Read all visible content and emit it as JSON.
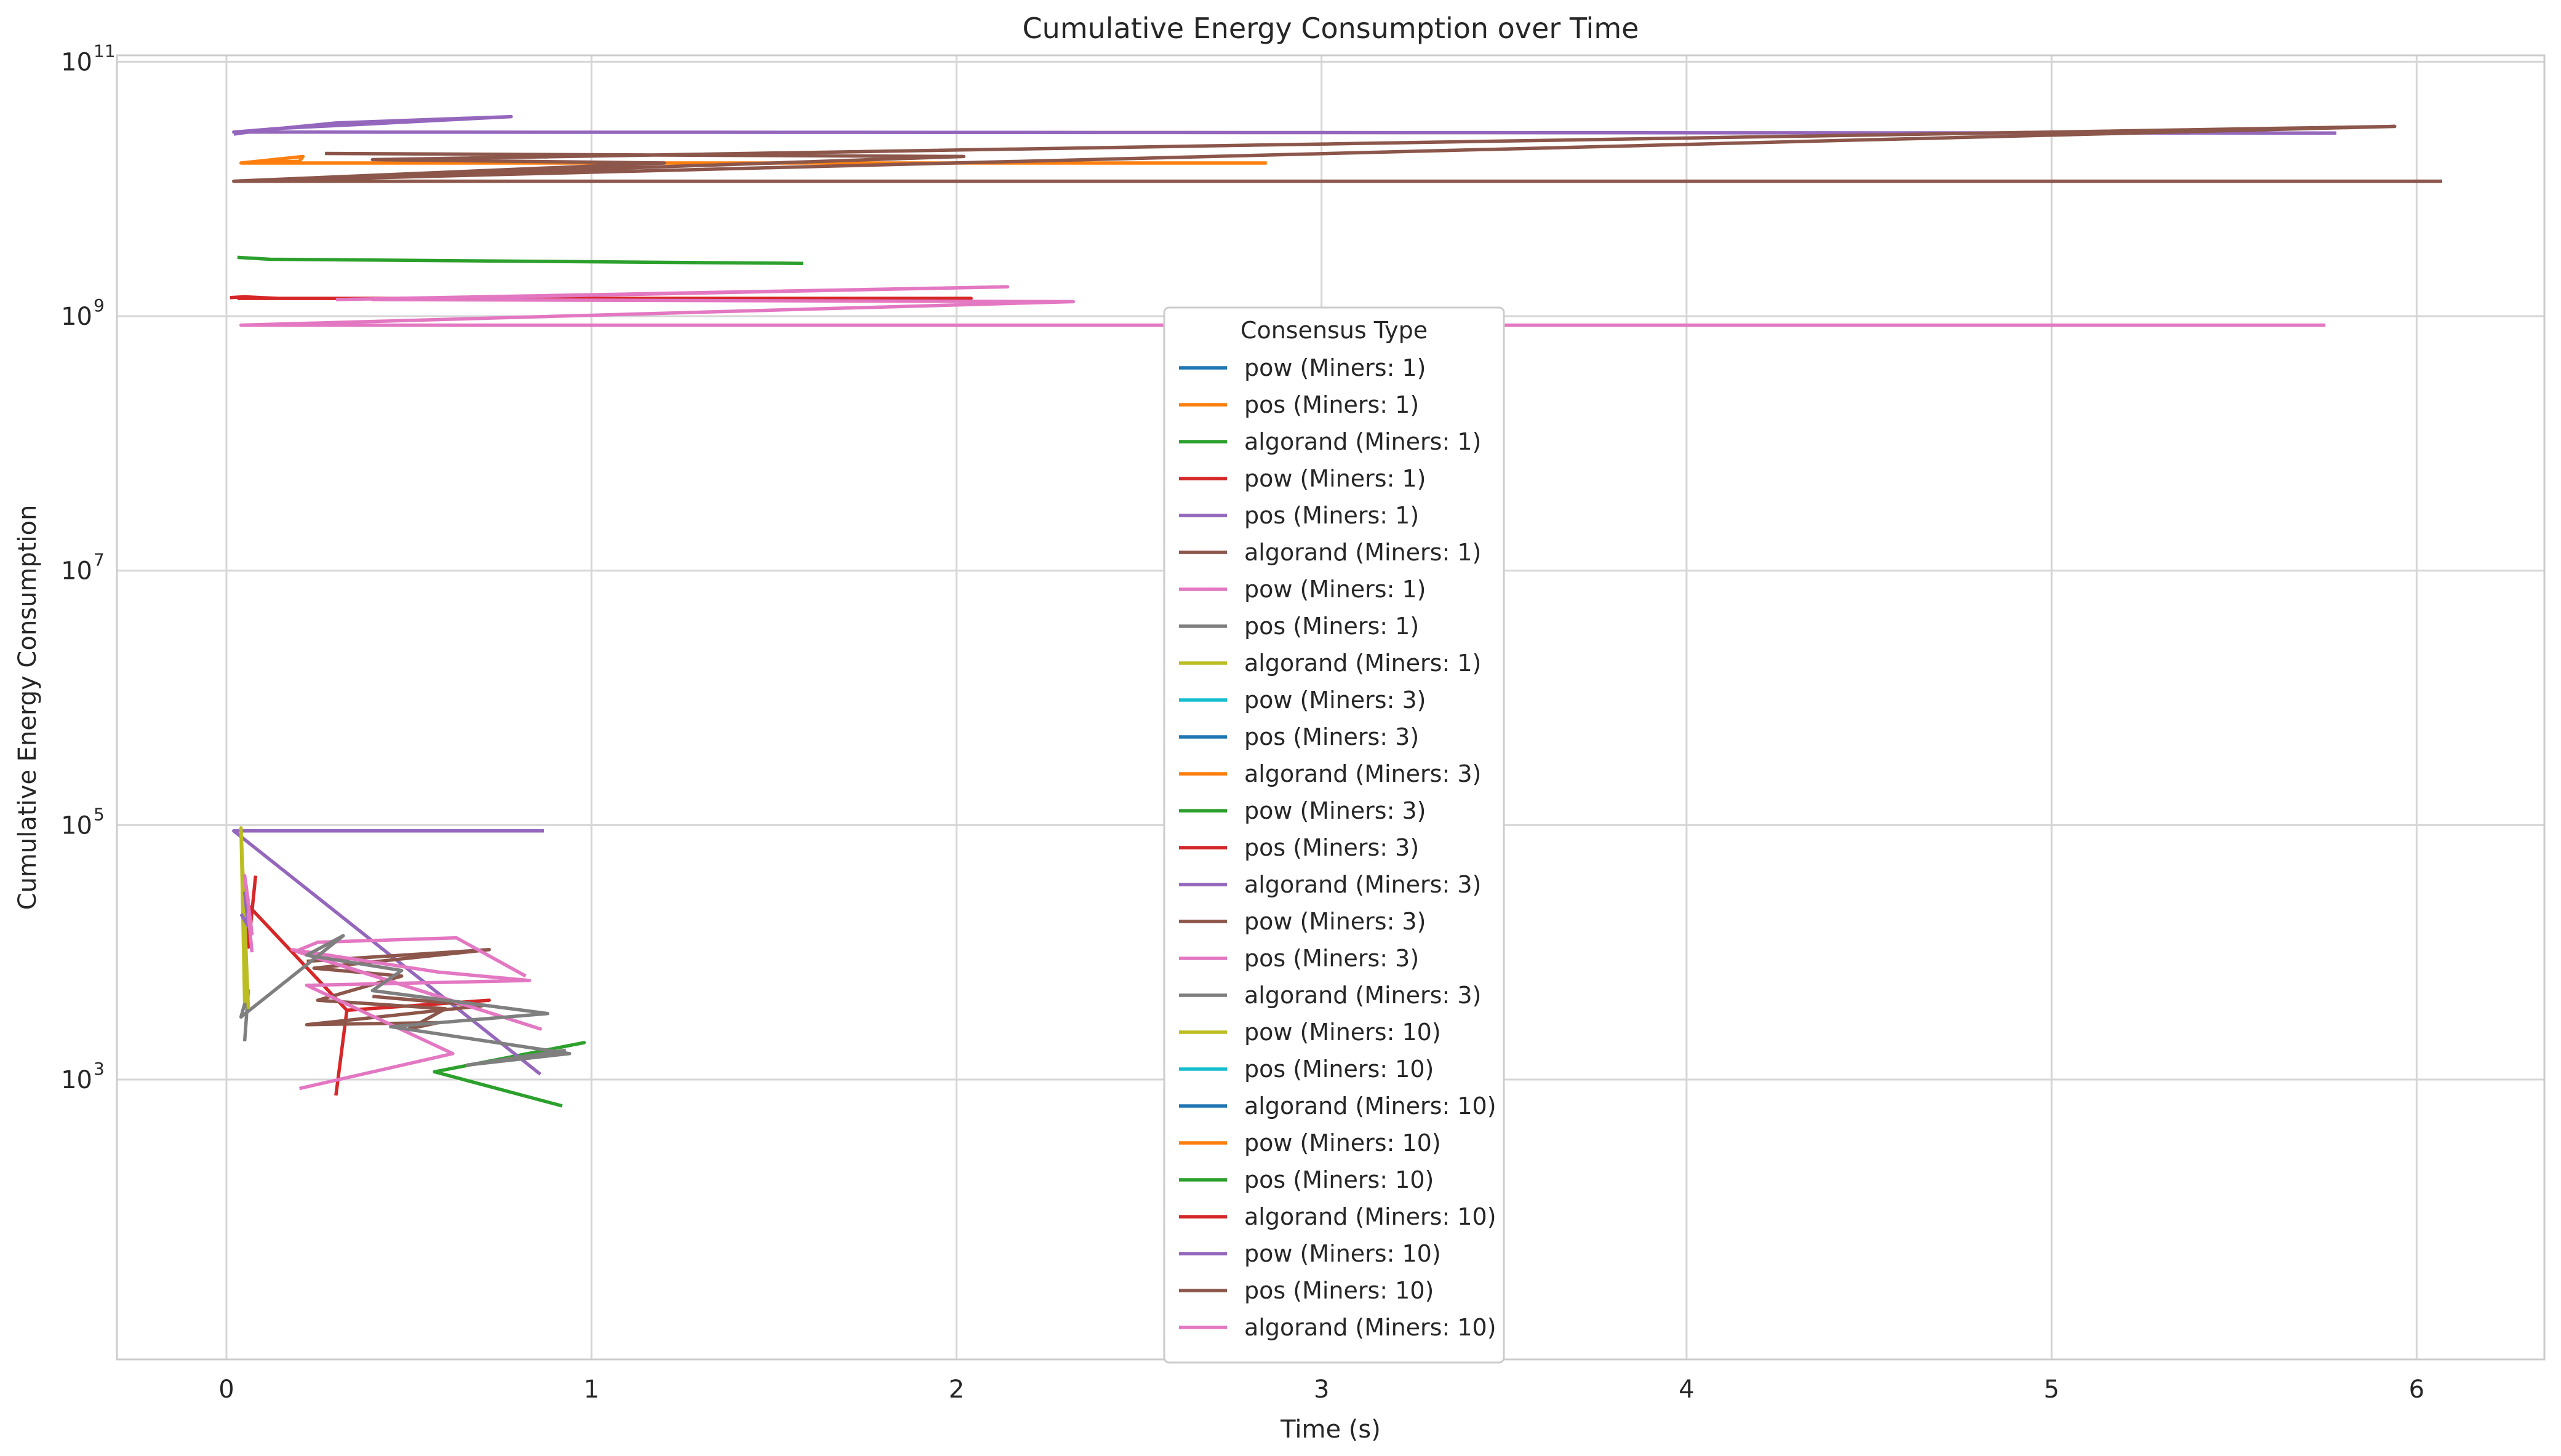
{
  "chart_data": {
    "type": "line",
    "title": "Cumulative Energy Consumption over Time",
    "xlabel": "Time (s)",
    "ylabel": "Cumulative Energy Consumption",
    "xscale": "linear",
    "yscale": "log",
    "xlim": [
      -0.3,
      6.35
    ],
    "ylim_log10": [
      0.8,
      11.05
    ],
    "xticks": [
      0,
      1,
      2,
      3,
      4,
      5,
      6
    ],
    "xtick_labels": [
      "0",
      "1",
      "2",
      "3",
      "4",
      "5",
      "6"
    ],
    "yticks": [
      3,
      5,
      7,
      9,
      11
    ],
    "ytick_base": "10",
    "ytick_exponents": [
      "3",
      "5",
      "7",
      "9",
      "11"
    ],
    "grid": true,
    "legend": {
      "title": "Consensus Type",
      "placement": "center"
    },
    "series": [
      {
        "name": "pow (Miners: 1)",
        "color": "#1f77b4",
        "x": [],
        "y": []
      },
      {
        "name": "pos (Miners: 1)",
        "color": "#ff7f0e",
        "x": [
          0.04,
          0.2,
          0.21,
          0.04,
          2.85
        ],
        "y": [
          16000000000.0,
          16500000000.0,
          18000000000.0,
          16000000000.0,
          16000000000.0
        ]
      },
      {
        "name": "algorand (Miners: 1)",
        "color": "#2ca02c",
        "x": [
          0.03,
          0.12,
          1.58
        ],
        "y": [
          2900000000.0,
          2800000000.0,
          2600000000.0
        ]
      },
      {
        "name": "pow (Miners: 1)",
        "color": "#d62728",
        "x": [
          0.01,
          0.05,
          0.14,
          2.04,
          0.03
        ],
        "y": [
          1400000000.0,
          1420000000.0,
          1380000000.0,
          1380000000.0,
          1380000000.0
        ]
      },
      {
        "name": "pos (Miners: 1)",
        "color": "#9467bd",
        "x": [
          0.02,
          0.1,
          0.3,
          0.78,
          0.35,
          0.15,
          0.02,
          5.78
        ],
        "y": [
          27000000000.0,
          29000000000.0,
          33000000000.0,
          37000000000.0,
          32000000000.0,
          30000000000.0,
          28000000000.0,
          27500000000.0
        ]
      },
      {
        "name": "algorand (Miners: 1)",
        "color": "#8c564b",
        "x": [
          0.27,
          2.02,
          0.03,
          5.94,
          0.4,
          1.2,
          0.02,
          6.07
        ],
        "y": [
          19000000000.0,
          18000000000.0,
          11500000000.0,
          31000000000.0,
          17000000000.0,
          16000000000.0,
          11500000000.0,
          11500000000.0
        ]
      },
      {
        "name": "pow (Miners: 1)",
        "color": "#e377c2",
        "x": [
          0.3,
          2.14,
          0.4,
          2.32,
          0.04,
          5.75
        ],
        "y": [
          1350000000.0,
          1700000000.0,
          1350000000.0,
          1300000000.0,
          850000000.0,
          850000000.0
        ]
      },
      {
        "name": "pos (Miners: 1)",
        "color": "#7f7f7f",
        "x": [],
        "y": []
      },
      {
        "name": "algorand (Miners: 1)",
        "color": "#bcbd22",
        "x": [],
        "y": []
      },
      {
        "name": "pow (Miners: 3)",
        "color": "#17becf",
        "x": [],
        "y": []
      },
      {
        "name": "pos (Miners: 3)",
        "color": "#1f77b4",
        "x": [],
        "y": []
      },
      {
        "name": "algorand (Miners: 3)",
        "color": "#ff7f0e",
        "x": [],
        "y": []
      },
      {
        "name": "pow (Miners: 3)",
        "color": "#2ca02c",
        "x": [
          0.92,
          0.57,
          0.98,
          0.57
        ],
        "y": [
          620,
          1150,
          1950,
          1150
        ]
      },
      {
        "name": "pos (Miners: 3)",
        "color": "#d62728",
        "x": [
          0.3,
          0.33,
          0.72,
          0.33,
          0.05,
          0.06,
          0.08
        ],
        "y": [
          750,
          3500,
          4200,
          3500,
          25000,
          11000,
          40000
        ]
      },
      {
        "name": "algorand (Miners: 3)",
        "color": "#9467bd",
        "x": [
          0.86,
          0.02,
          0.87
        ],
        "y": [
          1100,
          90000,
          90000
        ]
      },
      {
        "name": "pow (Miners: 3)",
        "color": "#8c564b",
        "x": [
          0.22,
          0.72,
          0.24,
          0.48,
          0.25,
          0.6,
          0.5,
          0.58,
          0.22,
          0.7,
          0.4
        ],
        "y": [
          8500,
          10500,
          7500,
          6500,
          4200,
          3600,
          2500,
          2800,
          2700,
          3800,
          4500
        ]
      },
      {
        "name": "pos (Miners: 3)",
        "color": "#e377c2",
        "x": [
          0.2,
          0.62,
          0.22,
          0.83,
          0.58,
          0.18,
          0.86,
          0.19,
          0.25,
          0.63,
          0.82
        ],
        "y": [
          850,
          1600,
          5500,
          6000,
          7000,
          10500,
          2500,
          10200,
          12000,
          13000,
          6500
        ]
      },
      {
        "name": "algorand (Miners: 3)",
        "color": "#7f7f7f",
        "x": [
          0.05,
          0.06,
          0.04,
          0.32,
          0.22,
          0.48,
          0.4,
          0.88,
          0.45,
          0.94,
          0.66,
          0.93
        ],
        "y": [
          2000,
          5000,
          3100,
          13500,
          9500,
          7200,
          5000,
          3300,
          2600,
          1600,
          1300,
          1700
        ]
      },
      {
        "name": "pow (Miners: 10)",
        "color": "#bcbd22",
        "x": [
          0.06,
          0.04,
          0.05
        ],
        "y": [
          3600,
          95000,
          4000
        ]
      },
      {
        "name": "pos (Miners: 10)",
        "color": "#17becf",
        "x": [],
        "y": []
      },
      {
        "name": "algorand (Miners: 10)",
        "color": "#1f77b4",
        "x": [],
        "y": []
      },
      {
        "name": "pow (Miners: 10)",
        "color": "#ff7f0e",
        "x": [],
        "y": []
      },
      {
        "name": "pos (Miners: 10)",
        "color": "#2ca02c",
        "x": [],
        "y": []
      },
      {
        "name": "algorand (Miners: 10)",
        "color": "#d62728",
        "x": [],
        "y": []
      },
      {
        "name": "pow (Miners: 10)",
        "color": "#9467bd",
        "x": [
          0.04,
          0.06,
          0.05
        ],
        "y": [
          20000,
          16000,
          30000
        ]
      },
      {
        "name": "pos (Miners: 10)",
        "color": "#8c564b",
        "x": [],
        "y": []
      },
      {
        "name": "algorand (Miners: 10)",
        "color": "#e377c2",
        "x": [
          0.07,
          0.06,
          0.07,
          0.05,
          0.06
        ],
        "y": [
          10000,
          20000,
          14000,
          40000,
          25000
        ]
      }
    ]
  }
}
